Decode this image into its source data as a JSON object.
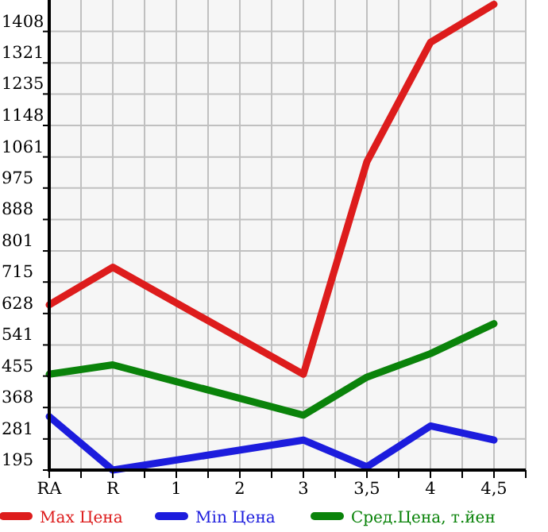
{
  "chart_data": {
    "type": "line",
    "categories": [
      "RA",
      "R",
      "1",
      "2",
      "3",
      "3,5",
      "4",
      "4,5"
    ],
    "series": [
      {
        "name": "Max Цена",
        "color": "#dd1c1c",
        "values": [
          652,
          756,
          null,
          null,
          460,
          1048,
          1378,
          1483
        ]
      },
      {
        "name": "Min Цена",
        "color": "#1c1cdd",
        "values": [
          343,
          195,
          null,
          null,
          278,
          204,
          317,
          278
        ]
      },
      {
        "name": "Сред.Цена, т.йен",
        "color": "#0a830a",
        "values": [
          460,
          486,
          null,
          null,
          347,
          452,
          517,
          600
        ]
      }
    ],
    "ylim": [
      195,
      1495
    ],
    "yticks": [
      195,
      281,
      368,
      455,
      541,
      628,
      715,
      801,
      888,
      975,
      1061,
      1148,
      1235,
      1321,
      1408
    ],
    "grid": true,
    "legend": "bottom",
    "marker": "none",
    "line_style": "solid"
  }
}
